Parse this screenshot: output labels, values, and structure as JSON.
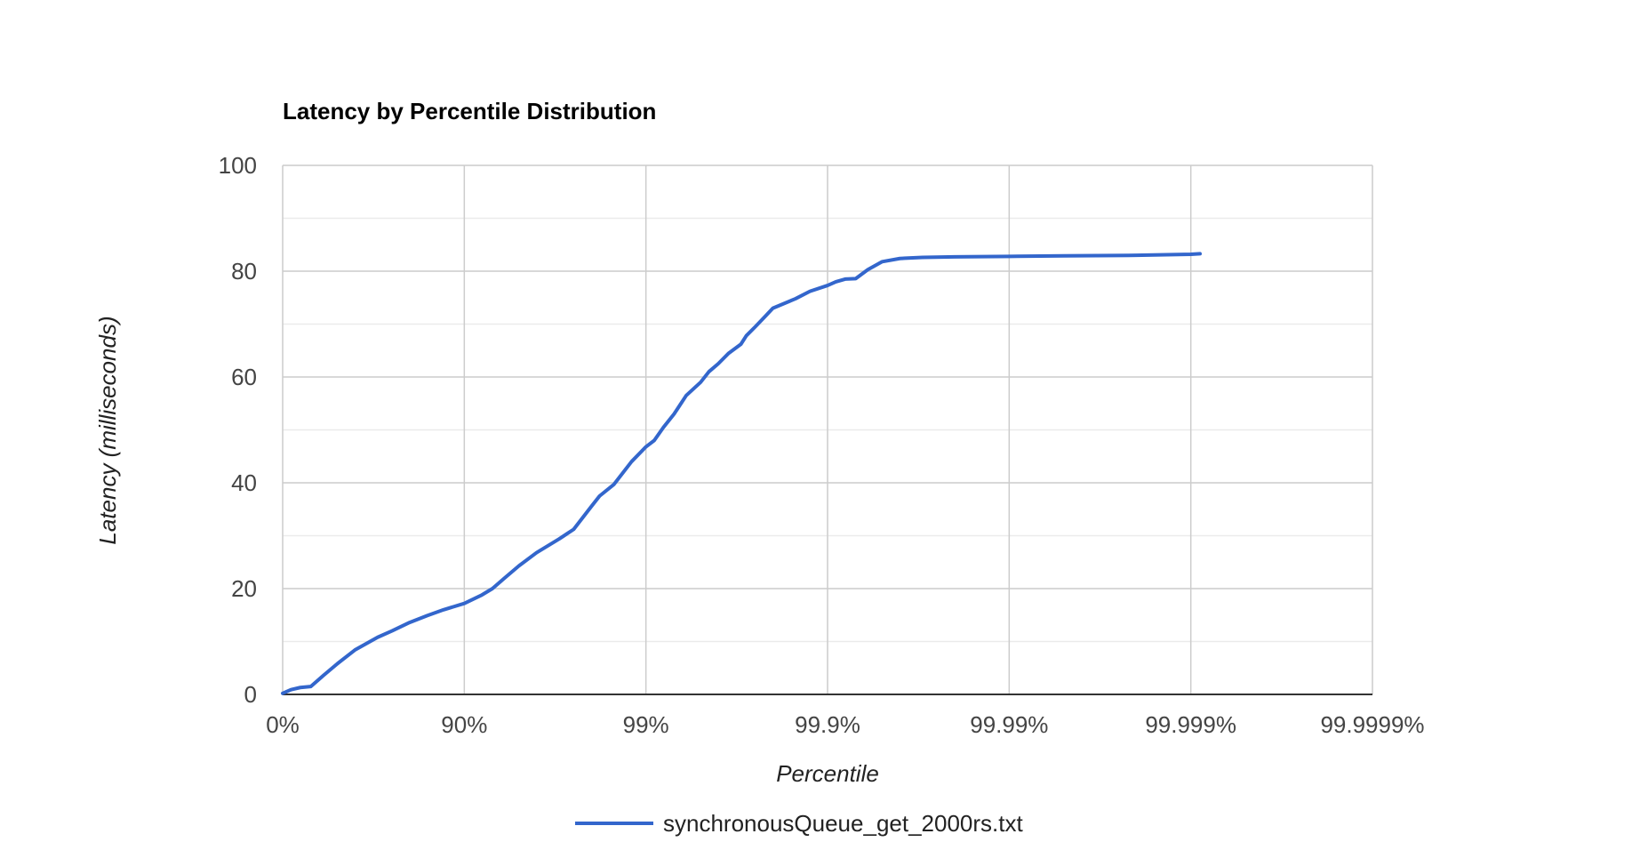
{
  "chart_data": {
    "type": "line",
    "title": "Latency by Percentile Distribution",
    "xlabel": "Percentile",
    "ylabel": "Latency (milliseconds)",
    "x_scale": "log-percentile",
    "x_tick_labels": [
      "0%",
      "90%",
      "99%",
      "99.9%",
      "99.99%",
      "99.999%",
      "99.9999%"
    ],
    "y_ticks": [
      0,
      20,
      40,
      60,
      80,
      100
    ],
    "ylim": [
      0,
      100
    ],
    "grid": true,
    "legend_position": "bottom",
    "series": [
      {
        "name": "synchronousQueue_get_2000rs.txt",
        "color": "#3366cc",
        "x": [
          0,
          10,
          20,
          30,
          40,
          45,
          50,
          60,
          70,
          75,
          80,
          84,
          87,
          90,
          92,
          93,
          94,
          95,
          96,
          97,
          97.5,
          98,
          98.2,
          98.5,
          98.8,
          99,
          99.1,
          99.2,
          99.3,
          99.4,
          99.5,
          99.55,
          99.6,
          99.65,
          99.7,
          99.72,
          99.75,
          99.78,
          99.8,
          99.85,
          99.875,
          99.9,
          99.91,
          99.92,
          99.93,
          99.94,
          99.95,
          99.96,
          99.97,
          99.98,
          99.99,
          99.995,
          99.998,
          99.999,
          99.99911
        ],
        "y": [
          0.2,
          0.9,
          1.3,
          1.5,
          3.5,
          4.6,
          5.8,
          8.4,
          10.8,
          12.0,
          13.6,
          14.9,
          16.0,
          17.2,
          18.8,
          20.0,
          22.0,
          24.3,
          26.8,
          29.4,
          31.2,
          35.5,
          37.5,
          39.7,
          44.0,
          46.8,
          48.0,
          50.5,
          53.0,
          56.5,
          59.0,
          61.0,
          62.5,
          64.5,
          66.2,
          67.8,
          69.5,
          71.5,
          73.0,
          74.8,
          76.2,
          77.3,
          78.0,
          78.5,
          78.6,
          80.3,
          81.8,
          82.4,
          82.6,
          82.7,
          82.8,
          82.9,
          83.0,
          83.2,
          83.3
        ]
      }
    ]
  }
}
